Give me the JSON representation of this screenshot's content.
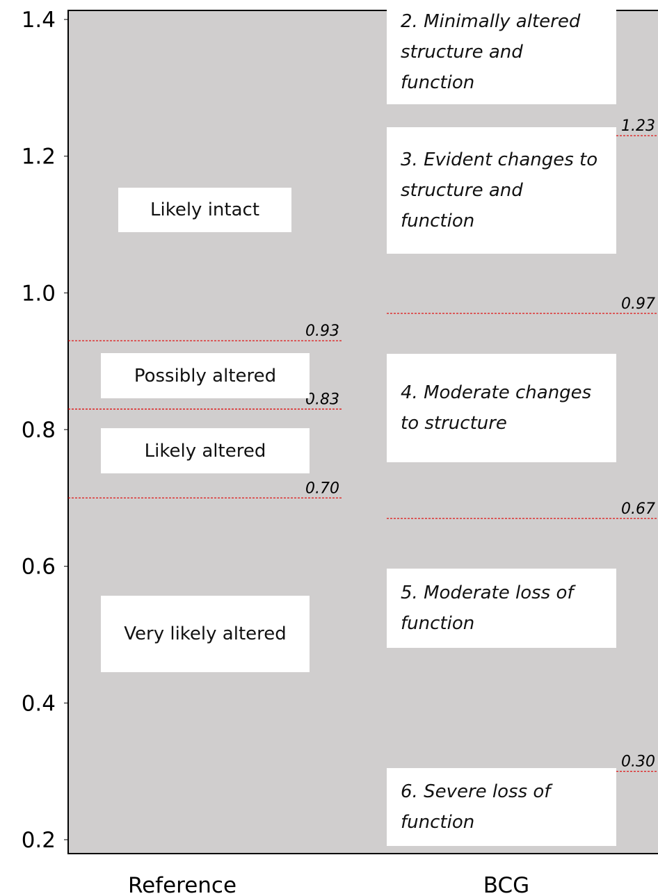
{
  "chart_data": {
    "type": "threshold",
    "ylim": [
      0.2,
      1.4
    ],
    "yticks": [
      1.4,
      1.2,
      {
        "value": 1,
        "label": "1.0"
      },
      0.8,
      0.6,
      0.4,
      0.2
    ],
    "background": "#d0cece",
    "line_color": "#e00000",
    "series": [
      {
        "name": "Reference",
        "values": [
          0.93,
          0.83,
          0.7
        ],
        "value_labels": [
          "0.93",
          "0.83",
          "0.70"
        ],
        "zones": [
          "Likely intact",
          "Possibly altered",
          "Likely altered",
          "Very likely altered"
        ]
      },
      {
        "name": "BCG",
        "values": [
          1.23,
          0.97,
          0.67,
          0.3
        ],
        "value_labels": [
          "1.23",
          "0.97",
          "0.67",
          "0.30"
        ],
        "zones": [
          "2. Minimally altered structure and function",
          "3. Evident changes to structure and function",
          "4. Moderate changes to structure",
          "5. Moderate loss of function",
          "6. Severe loss of function"
        ]
      }
    ]
  }
}
